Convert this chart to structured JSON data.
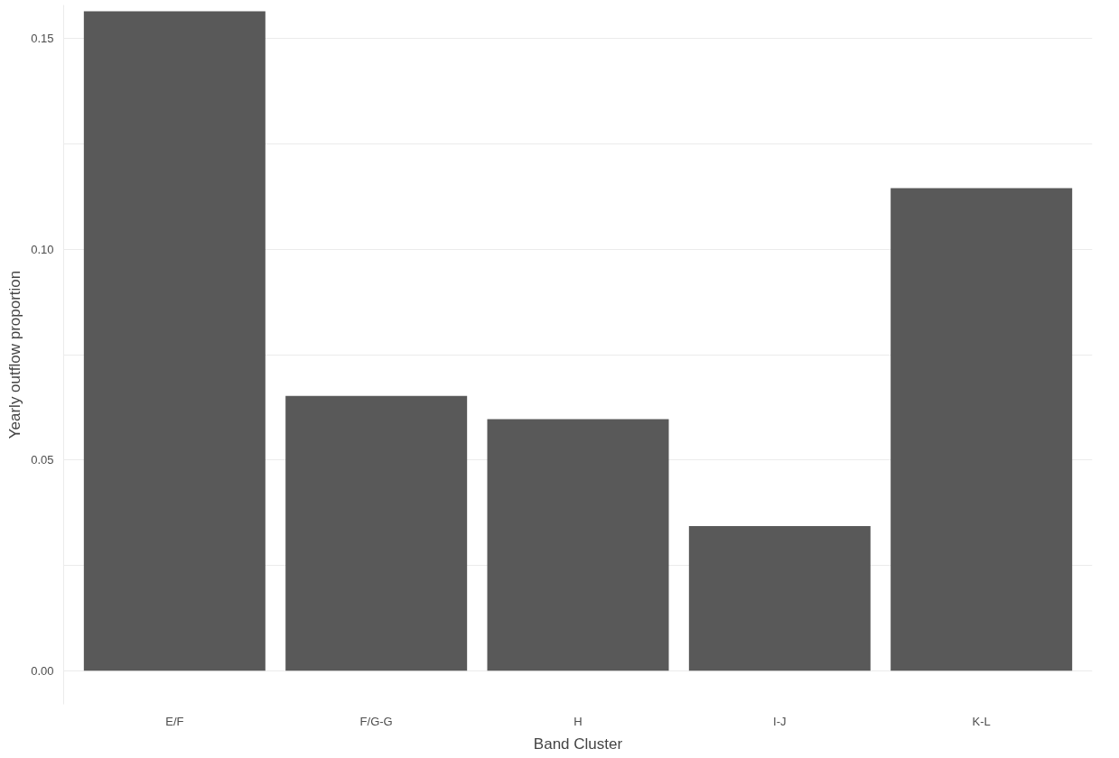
{
  "chart_data": {
    "type": "bar",
    "xlabel": "Band Cluster",
    "ylabel": "Yearly outflow proportion",
    "categories": [
      "E/F",
      "F/G-G",
      "H",
      "I-J",
      "K-L"
    ],
    "values": [
      0.1565,
      0.0652,
      0.0597,
      0.0343,
      0.1145
    ],
    "color": "#595959",
    "ylim": [
      -0.008,
      0.158
    ],
    "yticks": [
      {
        "value": 0.0,
        "label": "0.00"
      },
      {
        "value": 0.025,
        "label": null
      },
      {
        "value": 0.05,
        "label": "0.05"
      },
      {
        "value": 0.075,
        "label": null
      },
      {
        "value": 0.1,
        "label": "0.10"
      },
      {
        "value": 0.125,
        "label": null
      },
      {
        "value": 0.15,
        "label": "0.15"
      }
    ],
    "grid": "y"
  }
}
